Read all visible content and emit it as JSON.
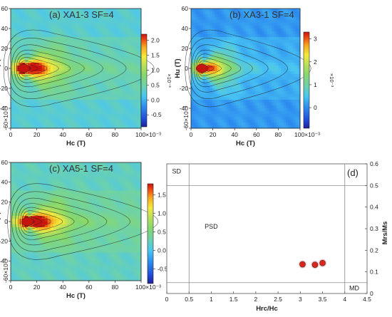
{
  "chart_data": [
    {
      "type": "heatmap",
      "id": "a",
      "title": "(a) XA1-3 SF=4",
      "xlabel": "Hc (T)",
      "ylabel": "Hu (T)",
      "xlim": [
        0,
        100
      ],
      "ylim": [
        -60,
        60
      ],
      "x_ticks": [
        "0",
        "20",
        "40",
        "60",
        "80",
        "100×10⁻³"
      ],
      "y_ticks": [
        "-60×10⁻³",
        "-40",
        "-20",
        "0",
        "20",
        "40",
        "60"
      ],
      "colorbar": {
        "ticks": [
          "2.0",
          "1.5",
          "1.0",
          "0.5",
          "0.0",
          "-0.5"
        ],
        "multiplier": "×10⁻³",
        "range": [
          -0.9,
          2.2
        ]
      },
      "peak": {
        "hc": 10,
        "hu": 0,
        "value": 2.1
      }
    },
    {
      "type": "heatmap",
      "id": "b",
      "title": "(b) XA3-1 SF=4",
      "xlabel": "Hc (T)",
      "ylabel": "Hu (T)",
      "xlim": [
        0,
        100
      ],
      "ylim": [
        -60,
        60
      ],
      "x_ticks": [
        "0",
        "20",
        "40",
        "60",
        "80",
        "100×10⁻³"
      ],
      "y_ticks": [
        "-60×10⁻³",
        "-40",
        "-20",
        "0",
        "20",
        "40",
        "60"
      ],
      "colorbar": {
        "ticks": [
          "3",
          "2",
          "1",
          "0"
        ],
        "multiplier": "×10⁻³",
        "range": [
          -0.9,
          3.3
        ]
      },
      "peak": {
        "hc": 10,
        "hu": 0,
        "value": 3.2
      }
    },
    {
      "type": "heatmap",
      "id": "c",
      "title": "(c) XA5-1 SF=4",
      "xlabel": "Hc (T)",
      "ylabel": "Hu (T)",
      "xlim": [
        0,
        100
      ],
      "ylim": [
        -60,
        60
      ],
      "x_ticks": [
        "0",
        "20",
        "40",
        "60",
        "80",
        "100×10⁻³"
      ],
      "y_ticks": [
        "-60×10⁻³",
        "-40",
        "-20",
        "0",
        "20",
        "40",
        "60"
      ],
      "colorbar": {
        "ticks": [
          "1.5",
          "1.0",
          "0.5",
          "0.0",
          "-0.5"
        ],
        "multiplier": "×10⁻³",
        "range": [
          -0.9,
          1.8
        ]
      },
      "peak": {
        "hc": 13,
        "hu": 0,
        "value": 1.7
      }
    },
    {
      "type": "scatter",
      "id": "d",
      "title": "(d)",
      "xlabel": "Hrc/Hc",
      "ylabel": "Mrs/Ms",
      "xlim": [
        0,
        4.5
      ],
      "ylim": [
        0,
        0.6
      ],
      "x_ticks": [
        "0",
        "0.5",
        "1",
        "1.5",
        "2",
        "2.5",
        "3",
        "3.5",
        "4",
        "4.5"
      ],
      "y_ticks": [
        "0",
        "0.1",
        "0.2",
        "0.3",
        "0.4",
        "0.5",
        "0.6"
      ],
      "region_labels": [
        "SD",
        "PSD",
        "MD"
      ],
      "boundaries": {
        "x": [
          0.5,
          4.0
        ],
        "y": [
          0.05,
          0.5
        ]
      },
      "points": [
        {
          "x": 3.05,
          "y": 0.135
        },
        {
          "x": 3.33,
          "y": 0.133
        },
        {
          "x": 3.5,
          "y": 0.141
        }
      ],
      "point_color": "#d9261c"
    }
  ]
}
